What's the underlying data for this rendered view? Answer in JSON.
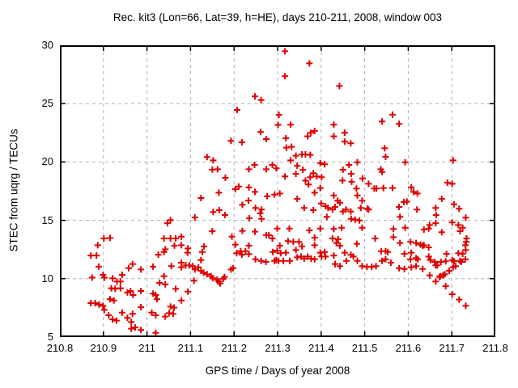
{
  "chart_data": {
    "type": "scatter",
    "title": "Rec. kit3 (Lon=66, Lat=39, h=HE), days 210-211, 2008, window 003",
    "xlabel": "GPS time / Days of year 2008",
    "ylabel": "STEC from uqrg / TECUs",
    "xlim": [
      210.8,
      211.8
    ],
    "ylim": [
      5,
      30
    ],
    "xticks": [
      "210.8",
      "210.9",
      "211",
      "211.1",
      "211.2",
      "211.3",
      "211.4",
      "211.5",
      "211.6",
      "211.7",
      "211.8"
    ],
    "yticks": [
      5,
      10,
      15,
      20,
      25,
      30
    ],
    "grid": true,
    "legend": "none",
    "marker_shape": "plus",
    "colors": {
      "marker": "#e00000",
      "grid": "#b0b0b0",
      "axis": "#000000",
      "background": "#ffffff"
    },
    "points": [
      [
        210.901,
        13.45
      ],
      [
        210.915,
        13.49
      ],
      [
        210.887,
        12.87
      ],
      [
        211.039,
        13.45
      ],
      [
        211.042,
        12.52
      ],
      [
        210.871,
        11.99
      ],
      [
        210.884,
        11.99
      ],
      [
        211.026,
        12.06
      ],
      [
        211.039,
        12.29
      ],
      [
        210.889,
        11.03
      ],
      [
        210.958,
        10.91
      ],
      [
        210.967,
        11.26
      ],
      [
        210.986,
        10.79
      ],
      [
        211.014,
        11.03
      ],
      [
        210.874,
        10.1
      ],
      [
        210.899,
        10.33
      ],
      [
        210.902,
        10.1
      ],
      [
        210.921,
        10.03
      ],
      [
        210.943,
        10.33
      ],
      [
        210.931,
        9.76
      ],
      [
        210.939,
        9.76
      ],
      [
        211.039,
        10.22
      ],
      [
        211.029,
        9.64
      ],
      [
        211.042,
        9.52
      ],
      [
        210.918,
        9.18
      ],
      [
        210.927,
        9.14
      ],
      [
        210.939,
        9.18
      ],
      [
        210.955,
        8.83
      ],
      [
        210.962,
        8.95
      ],
      [
        210.968,
        8.6
      ],
      [
        210.986,
        8.95
      ],
      [
        211.014,
        8.72
      ],
      [
        211.02,
        8.6
      ],
      [
        211.023,
        8.25
      ],
      [
        210.871,
        7.91
      ],
      [
        210.881,
        7.91
      ],
      [
        210.89,
        7.79
      ],
      [
        210.899,
        7.68
      ],
      [
        210.915,
        8.25
      ],
      [
        210.924,
        8.14
      ],
      [
        210.902,
        7.33
      ],
      [
        210.943,
        7.1
      ],
      [
        210.912,
        6.87
      ],
      [
        210.921,
        6.52
      ],
      [
        210.93,
        6.41
      ],
      [
        210.955,
        6.64
      ],
      [
        210.964,
        6.29
      ],
      [
        210.986,
        7.56
      ],
      [
        210.967,
        6.99
      ],
      [
        211.011,
        7.1
      ],
      [
        211.02,
        6.87
      ],
      [
        211.042,
        6.76
      ],
      [
        210.964,
        5.72
      ],
      [
        210.973,
        5.83
      ],
      [
        210.986,
        5.6
      ],
      [
        211.02,
        5.37
      ],
      [
        211.047,
        14.76
      ],
      [
        211.248,
        25.62
      ],
      [
        211.262,
        25.31
      ],
      [
        211.207,
        24.46
      ],
      [
        211.303,
        24.04
      ],
      [
        211.301,
        23.18
      ],
      [
        211.261,
        22.57
      ],
      [
        211.274,
        21.97
      ],
      [
        211.193,
        21.81
      ],
      [
        211.218,
        21.69
      ],
      [
        211.138,
        20.42
      ],
      [
        211.152,
        20.14
      ],
      [
        211.15,
        19.34
      ],
      [
        211.162,
        19.38
      ],
      [
        211.18,
        18.64
      ],
      [
        211.234,
        19.38
      ],
      [
        211.247,
        19.75
      ],
      [
        211.274,
        19.38
      ],
      [
        211.288,
        19.75
      ],
      [
        211.297,
        19.45
      ],
      [
        211.165,
        17.37
      ],
      [
        211.124,
        16.91
      ],
      [
        211.203,
        17.67
      ],
      [
        211.211,
        17.9
      ],
      [
        211.234,
        17.83
      ],
      [
        211.248,
        17.44
      ],
      [
        211.276,
        17.07
      ],
      [
        211.293,
        17.21
      ],
      [
        211.233,
        16.68
      ],
      [
        211.219,
        16.33
      ],
      [
        211.249,
        16.06
      ],
      [
        211.263,
        15.92
      ],
      [
        211.26,
        15.6
      ],
      [
        211.152,
        15.71
      ],
      [
        211.166,
        15.87
      ],
      [
        211.179,
        15.46
      ],
      [
        211.11,
        15.25
      ],
      [
        211.054,
        15.02
      ],
      [
        211.235,
        15.18
      ],
      [
        211.263,
        15.13
      ],
      [
        211.15,
        14.07
      ],
      [
        211.219,
        14.1
      ],
      [
        211.248,
        14.03
      ],
      [
        211.274,
        13.73
      ],
      [
        211.28,
        13.73
      ],
      [
        211.288,
        13.45
      ],
      [
        211.299,
        14.3
      ],
      [
        211.054,
        13.45
      ],
      [
        211.066,
        13.45
      ],
      [
        211.079,
        13.61
      ],
      [
        211.063,
        12.83
      ],
      [
        211.079,
        12.87
      ],
      [
        211.094,
        12.59
      ],
      [
        211.093,
        12.23
      ],
      [
        211.127,
        12.29
      ],
      [
        211.131,
        12.76
      ],
      [
        211.195,
        13.61
      ],
      [
        211.203,
        12.92
      ],
      [
        211.206,
        12.18
      ],
      [
        211.215,
        12.36
      ],
      [
        211.218,
        12.06
      ],
      [
        211.226,
        12.36
      ],
      [
        211.234,
        12.11
      ],
      [
        211.234,
        12.83
      ],
      [
        211.249,
        11.67
      ],
      [
        211.262,
        11.53
      ],
      [
        211.273,
        11.44
      ],
      [
        211.289,
        12.29
      ],
      [
        211.299,
        12.41
      ],
      [
        211.297,
        11.6
      ],
      [
        211.293,
        11.53
      ],
      [
        211.056,
        11.07
      ],
      [
        211.079,
        11.37
      ],
      [
        211.079,
        10.98
      ],
      [
        211.089,
        11.14
      ],
      [
        211.097,
        11.14
      ],
      [
        211.105,
        11.07
      ],
      [
        211.11,
        10.79
      ],
      [
        211.118,
        10.98
      ],
      [
        211.124,
        11.6
      ],
      [
        211.124,
        10.68
      ],
      [
        211.13,
        10.52
      ],
      [
        211.138,
        10.38
      ],
      [
        211.147,
        10.22
      ],
      [
        211.151,
        10.05
      ],
      [
        211.161,
        9.92
      ],
      [
        211.165,
        9.76
      ],
      [
        211.168,
        9.59
      ],
      [
        211.175,
        9.99
      ],
      [
        211.178,
        10.15
      ],
      [
        211.108,
        9.83
      ],
      [
        211.193,
        10.79
      ],
      [
        211.198,
        10.91
      ],
      [
        211.066,
        9.13
      ],
      [
        211.094,
        8.9
      ],
      [
        211.079,
        8.14
      ],
      [
        211.054,
        7.61
      ],
      [
        211.062,
        7.52
      ],
      [
        211.051,
        7.05
      ],
      [
        211.06,
        6.99
      ],
      [
        211.317,
        29.49
      ],
      [
        211.373,
        28.45
      ],
      [
        211.317,
        27.35
      ],
      [
        211.442,
        26.51
      ],
      [
        211.54,
        23.47
      ],
      [
        211.33,
        23.19
      ],
      [
        211.376,
        22.5
      ],
      [
        211.385,
        22.66
      ],
      [
        211.369,
        22.2
      ],
      [
        211.429,
        23.19
      ],
      [
        211.429,
        22.2
      ],
      [
        211.454,
        22.5
      ],
      [
        211.319,
        22.04
      ],
      [
        211.454,
        21.74
      ],
      [
        211.468,
        21.6
      ],
      [
        211.32,
        21.23
      ],
      [
        211.332,
        21.3
      ],
      [
        211.342,
        20.54
      ],
      [
        211.356,
        20.65
      ],
      [
        211.364,
        20.65
      ],
      [
        211.375,
        20.61
      ],
      [
        211.33,
        20.14
      ],
      [
        211.345,
        19.68
      ],
      [
        211.358,
        19.33
      ],
      [
        211.317,
        18.76
      ],
      [
        211.342,
        18.99
      ],
      [
        211.364,
        18.41
      ],
      [
        211.375,
        18.69
      ],
      [
        211.382,
        19.04
      ],
      [
        211.39,
        18.76
      ],
      [
        211.398,
        19.91
      ],
      [
        211.408,
        19.8
      ],
      [
        211.401,
        18.69
      ],
      [
        211.371,
        18.07
      ],
      [
        211.385,
        17.37
      ],
      [
        211.398,
        17.77
      ],
      [
        211.305,
        17.3
      ],
      [
        211.345,
        16.84
      ],
      [
        211.361,
        16.06
      ],
      [
        211.382,
        15.87
      ],
      [
        211.4,
        16.45
      ],
      [
        211.41,
        16.22
      ],
      [
        211.416,
        16.06
      ],
      [
        211.426,
        15.92
      ],
      [
        211.432,
        16.15
      ],
      [
        211.413,
        15.3
      ],
      [
        211.429,
        17.14
      ],
      [
        211.438,
        16.68
      ],
      [
        211.443,
        16.52
      ],
      [
        211.45,
        19.33
      ],
      [
        211.464,
        19.75
      ],
      [
        211.449,
        18.41
      ],
      [
        211.469,
        18.99
      ],
      [
        211.483,
        19.98
      ],
      [
        211.47,
        18.3
      ],
      [
        211.481,
        17.72
      ],
      [
        211.483,
        17.14
      ],
      [
        211.495,
        18.59
      ],
      [
        211.509,
        18.13
      ],
      [
        211.522,
        17.72
      ],
      [
        211.527,
        17.72
      ],
      [
        211.543,
        17.77
      ],
      [
        211.537,
        19.38
      ],
      [
        211.54,
        19.15
      ],
      [
        211.548,
        20.44
      ],
      [
        211.546,
        21.18
      ],
      [
        211.45,
        15.76
      ],
      [
        211.457,
        15.92
      ],
      [
        211.468,
        15.76
      ],
      [
        211.491,
        16.06
      ],
      [
        211.506,
        15.99
      ],
      [
        211.509,
        15.92
      ],
      [
        211.494,
        16.68
      ],
      [
        211.469,
        15.13
      ],
      [
        211.478,
        15.06
      ],
      [
        211.488,
        14.99
      ],
      [
        211.327,
        14.3
      ],
      [
        211.373,
        14.14
      ],
      [
        211.398,
        14.3
      ],
      [
        211.429,
        14.26
      ],
      [
        211.447,
        14.37
      ],
      [
        211.494,
        14.37
      ],
      [
        211.385,
        13.52
      ],
      [
        211.385,
        12.87
      ],
      [
        211.324,
        13.22
      ],
      [
        211.336,
        13.15
      ],
      [
        211.349,
        13.15
      ],
      [
        211.305,
        12.83
      ],
      [
        211.319,
        12.23
      ],
      [
        211.307,
        12.18
      ],
      [
        211.302,
        11.53
      ],
      [
        211.313,
        11.53
      ],
      [
        211.328,
        11.53
      ],
      [
        211.342,
        12.46
      ],
      [
        211.356,
        12.76
      ],
      [
        211.345,
        11.83
      ],
      [
        211.354,
        11.9
      ],
      [
        211.361,
        11.72
      ],
      [
        211.369,
        11.9
      ],
      [
        211.377,
        11.72
      ],
      [
        211.385,
        11.67
      ],
      [
        211.398,
        12.23
      ],
      [
        211.401,
        11.9
      ],
      [
        211.408,
        12.29
      ],
      [
        211.41,
        11.9
      ],
      [
        211.426,
        13.45
      ],
      [
        211.439,
        13.38
      ],
      [
        211.429,
        11.99
      ],
      [
        211.435,
        13.06
      ],
      [
        211.443,
        12.83
      ],
      [
        211.454,
        12.23
      ],
      [
        211.458,
        11.53
      ],
      [
        211.468,
        12.06
      ],
      [
        211.474,
        11.9
      ],
      [
        211.432,
        11.26
      ],
      [
        211.443,
        11.07
      ],
      [
        211.482,
        12.99
      ],
      [
        211.483,
        11.53
      ],
      [
        211.524,
        13.45
      ],
      [
        211.494,
        11.07
      ],
      [
        211.505,
        11.02
      ],
      [
        211.516,
        11.02
      ],
      [
        211.526,
        11.07
      ],
      [
        211.538,
        12.36
      ],
      [
        211.548,
        12.36
      ],
      [
        211.54,
        11.53
      ],
      [
        211.548,
        11.67
      ],
      [
        211.564,
        24.05
      ],
      [
        211.579,
        23.26
      ],
      [
        211.593,
        19.98
      ],
      [
        211.703,
        20.14
      ],
      [
        211.564,
        17.77
      ],
      [
        211.607,
        17.83
      ],
      [
        211.612,
        17.44
      ],
      [
        211.621,
        17.3
      ],
      [
        211.59,
        16.57
      ],
      [
        211.597,
        16.61
      ],
      [
        211.579,
        16.15
      ],
      [
        211.62,
        15.92
      ],
      [
        211.581,
        15.3
      ],
      [
        211.677,
        16.84
      ],
      [
        211.69,
        18.23
      ],
      [
        211.701,
        18.13
      ],
      [
        211.705,
        16.38
      ],
      [
        211.717,
        15.99
      ],
      [
        211.663,
        16.06
      ],
      [
        211.664,
        15.46
      ],
      [
        211.663,
        14.76
      ],
      [
        211.701,
        14.83
      ],
      [
        211.715,
        14.6
      ],
      [
        211.732,
        15.23
      ],
      [
        211.649,
        14.6
      ],
      [
        211.566,
        14.26
      ],
      [
        211.593,
        14.37
      ],
      [
        211.636,
        14.21
      ],
      [
        211.647,
        14.3
      ],
      [
        211.677,
        13.98
      ],
      [
        211.725,
        14.37
      ],
      [
        211.566,
        13.56
      ],
      [
        211.581,
        13.06
      ],
      [
        211.605,
        13.15
      ],
      [
        211.618,
        13.06
      ],
      [
        211.628,
        12.92
      ],
      [
        211.633,
        12.83
      ],
      [
        211.636,
        12.87
      ],
      [
        211.647,
        12.69
      ],
      [
        211.591,
        12.13
      ],
      [
        211.607,
        12.23
      ],
      [
        211.605,
        11.67
      ],
      [
        211.553,
        12.29
      ],
      [
        211.56,
        11.37
      ],
      [
        211.579,
        10.91
      ],
      [
        211.591,
        10.84
      ],
      [
        211.607,
        10.98
      ],
      [
        211.618,
        11.07
      ],
      [
        211.633,
        10.84
      ],
      [
        211.618,
        11.76
      ],
      [
        211.622,
        11.67
      ],
      [
        211.647,
        11.9
      ],
      [
        211.651,
        11.6
      ],
      [
        211.663,
        11.14
      ],
      [
        211.667,
        11.14
      ],
      [
        211.661,
        11.44
      ],
      [
        211.675,
        11.44
      ],
      [
        211.686,
        11.49
      ],
      [
        211.688,
        12.13
      ],
      [
        211.649,
        10.29
      ],
      [
        211.663,
        9.76
      ],
      [
        211.672,
        10.15
      ],
      [
        211.674,
        10.22
      ],
      [
        211.68,
        10.29
      ],
      [
        211.684,
        10.38
      ],
      [
        211.694,
        10.68
      ],
      [
        211.701,
        11.6
      ],
      [
        211.705,
        11.49
      ],
      [
        211.709,
        11.07
      ],
      [
        211.703,
        10.98
      ],
      [
        211.715,
        12.18
      ],
      [
        211.719,
        11.53
      ],
      [
        211.722,
        11.44
      ],
      [
        211.725,
        12.13
      ],
      [
        211.731,
        11.67
      ],
      [
        211.732,
        12.46
      ],
      [
        211.734,
        13.45
      ],
      [
        211.731,
        12.87
      ],
      [
        211.686,
        9.36
      ],
      [
        211.701,
        8.67
      ],
      [
        211.717,
        8.21
      ],
      [
        211.732,
        7.68
      ],
      [
        211.719,
        14.07
      ],
      [
        211.733,
        13.15
      ]
    ]
  }
}
